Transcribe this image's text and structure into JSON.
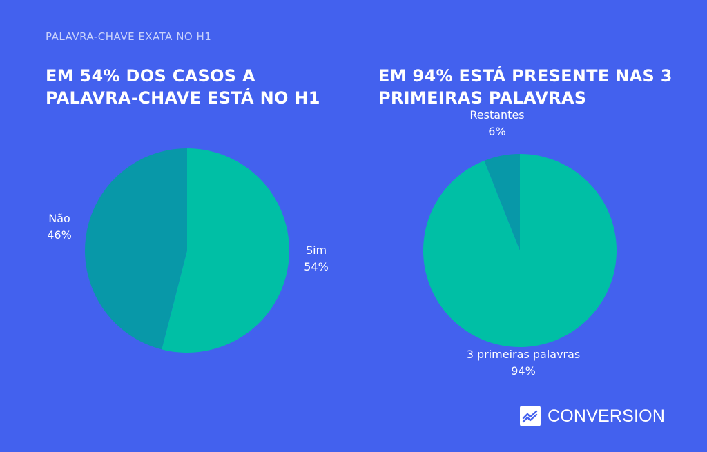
{
  "header": {
    "eyebrow": "PALAVRA-CHAVE EXATA NO  H1"
  },
  "colors": {
    "background": "#4361ee",
    "slice_primary": "#00bfa5",
    "slice_secondary": "#0898a8"
  },
  "chart_data": [
    {
      "type": "pie",
      "title_lines": [
        "EM 54% DOS CASOS A",
        "PALAVRA-CHAVE ESTÁ NO H1"
      ],
      "slices": [
        {
          "label": "Sim",
          "value": 54,
          "value_label": "54%",
          "color": "#00bfa5"
        },
        {
          "label": "Não",
          "value": 46,
          "value_label": "46%",
          "color": "#0898a8"
        }
      ]
    },
    {
      "type": "pie",
      "title_lines": [
        "EM 94% ESTÁ PRESENTE NAS 3",
        "PRIMEIRAS PALAVRAS"
      ],
      "slices": [
        {
          "label": "3 primeiras palavras",
          "value": 94,
          "value_label": "94%",
          "color": "#00bfa5"
        },
        {
          "label": "Restantes",
          "value": 6,
          "value_label": "6%",
          "color": "#0898a8"
        }
      ]
    }
  ],
  "brand": {
    "name": "CONVERSION",
    "logo_icon": "trend-line-icon"
  }
}
